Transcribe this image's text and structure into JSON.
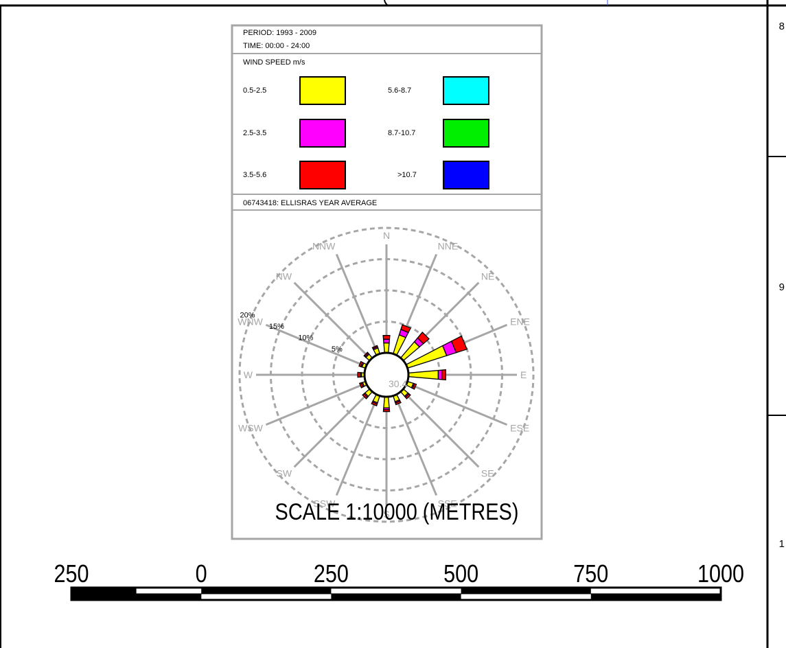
{
  "legend": {
    "period": "PERIOD: 1993 - 2009",
    "time": "TIME:  00:00 - 24:00",
    "speed_title": "WIND SPEED m/s",
    "bins": [
      {
        "label": "0.5-2.5",
        "color": "#ffff00"
      },
      {
        "label": "2.5-3.5",
        "color": "#ff00ff"
      },
      {
        "label": "3.5-5.6",
        "color": "#ff0000"
      },
      {
        "label": "5.6-8.7",
        "color": "#00ffff"
      },
      {
        "label": "8.7-10.7",
        "color": "#00ee00"
      },
      {
        "label": ">10.7",
        "color": "#0000ff"
      }
    ],
    "station": "06743418: ELLISRAS YEAR AVERAGE"
  },
  "chart_data": {
    "type": "wind_rose",
    "directions": [
      "N",
      "NNE",
      "NE",
      "ENE",
      "E",
      "ESE",
      "SE",
      "SSE",
      "S",
      "SSW",
      "SW",
      "WSW",
      "W",
      "WNW",
      "NW",
      "NNW"
    ],
    "rings": [
      5,
      10,
      15,
      20
    ],
    "ring_labels": [
      "5%",
      "10%",
      "15%",
      "20%"
    ],
    "calm": "30.4",
    "series": [
      {
        "name": "0.5-2.5",
        "values": [
          1.6,
          3.2,
          3.4,
          6.6,
          4.8,
          1.0,
          1.0,
          1.0,
          1.8,
          1.2,
          1.0,
          0.5,
          0.5,
          0.6,
          0.8,
          1.0
        ]
      },
      {
        "name": "2.5-3.5",
        "values": [
          0.6,
          0.9,
          0.8,
          1.6,
          0.6,
          0.2,
          0.2,
          0.2,
          0.3,
          0.2,
          0.2,
          0.2,
          0.2,
          0.2,
          0.2,
          0.2
        ]
      },
      {
        "name": "3.5-5.6",
        "values": [
          0.6,
          0.8,
          1.2,
          1.8,
          0.6,
          0.3,
          0.3,
          0.3,
          0.3,
          0.3,
          0.3,
          0.3,
          0.4,
          0.3,
          0.2,
          0.2
        ]
      },
      {
        "name": "5.6-8.7",
        "values": [
          0,
          0,
          0,
          0,
          0,
          0,
          0,
          0,
          0,
          0,
          0,
          0,
          0,
          0,
          0,
          0
        ]
      },
      {
        "name": "8.7-10.7",
        "values": [
          0,
          0,
          0,
          0,
          0,
          0,
          0,
          0,
          0,
          0,
          0,
          0,
          0,
          0,
          0,
          0
        ]
      },
      {
        "name": ">10.7",
        "values": [
          0,
          0,
          0,
          0,
          0,
          0,
          0,
          0,
          0,
          0,
          0,
          0,
          0,
          0,
          0,
          0
        ]
      }
    ]
  },
  "scale_bar": {
    "numbers": [
      "250",
      "0",
      "250",
      "500",
      "750",
      "1000"
    ],
    "title": "SCALE 1:10000 (METRES)"
  },
  "side_labels": [
    "8",
    "9",
    "1"
  ]
}
